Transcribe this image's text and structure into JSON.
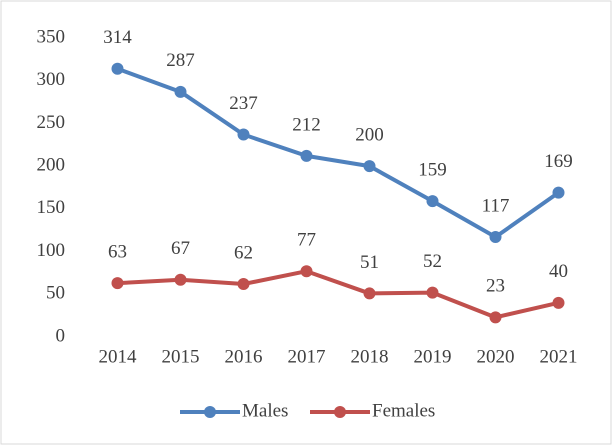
{
  "chart_data": {
    "type": "line",
    "categories": [
      "2014",
      "2015",
      "2016",
      "2017",
      "2018",
      "2019",
      "2020",
      "2021"
    ],
    "series": [
      {
        "name": "Males",
        "color": "#4f81bd",
        "values": [
          314,
          287,
          237,
          212,
          200,
          159,
          117,
          169
        ]
      },
      {
        "name": "Females",
        "color": "#c0504d",
        "values": [
          63,
          67,
          62,
          77,
          51,
          52,
          23,
          40
        ]
      }
    ],
    "ylim": [
      0,
      350
    ],
    "yticks": [
      0,
      50,
      100,
      150,
      200,
      250,
      300,
      350
    ],
    "grid": false,
    "legend": "bottom",
    "data_labels": true
  }
}
